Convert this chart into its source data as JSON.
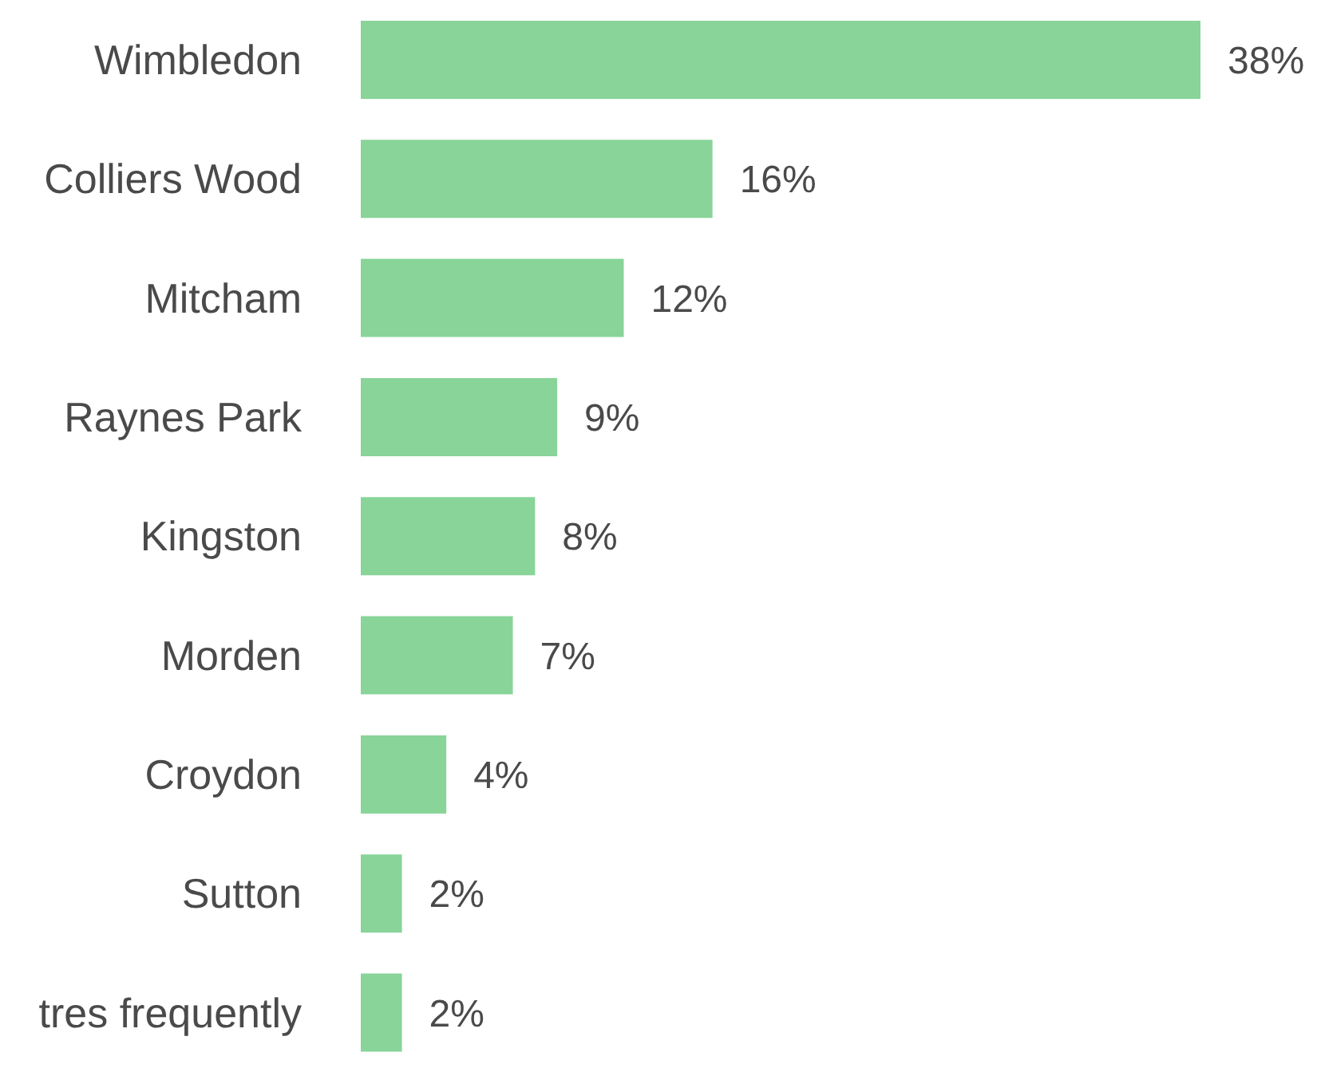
{
  "chart_data": {
    "type": "bar",
    "orientation": "horizontal",
    "categories": [
      "Wimbledon",
      "Colliers Wood",
      "Mitcham",
      "Raynes Park",
      "Kingston",
      "Morden",
      "Croydon",
      "Sutton",
      "tres frequently"
    ],
    "values": [
      38,
      16,
      12,
      9,
      8,
      7,
      4,
      2,
      2
    ],
    "value_labels": [
      "38%",
      "16%",
      "12%",
      "9%",
      "8%",
      "7%",
      "4%",
      "2%",
      "2%"
    ],
    "color": "#88d499",
    "grid": false,
    "legend": false
  }
}
